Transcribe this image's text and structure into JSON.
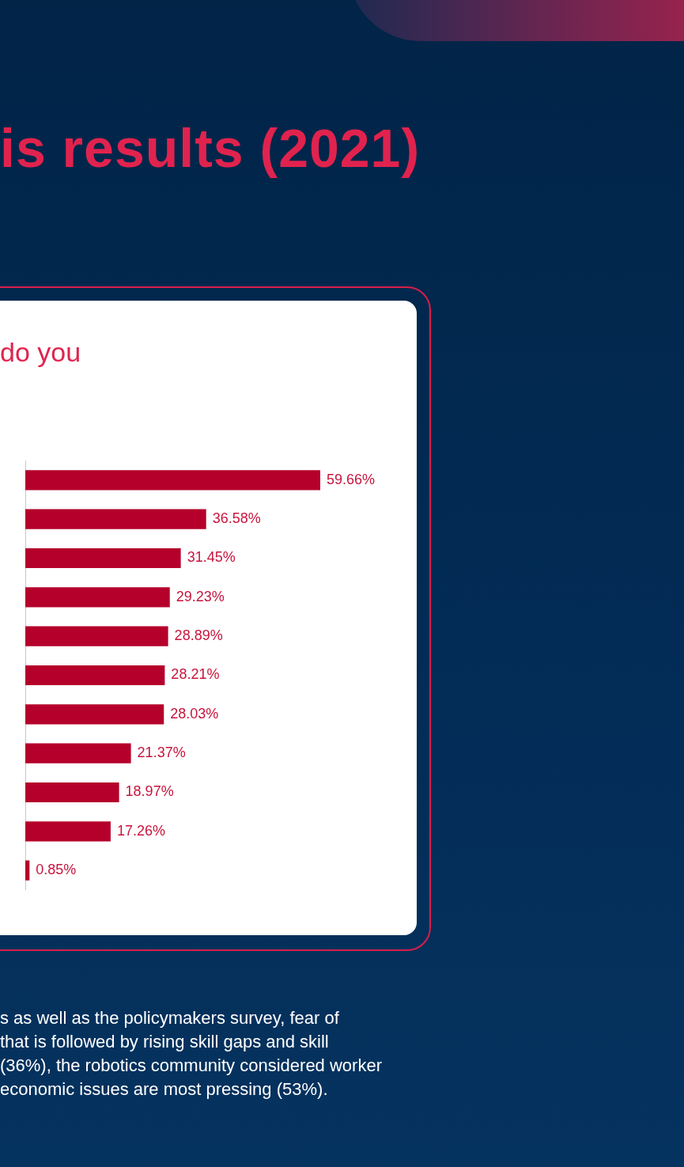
{
  "chart_data": {
    "type": "bar",
    "orientation": "horizontal",
    "title": "is results (2021)",
    "subtitle": "do you",
    "categories": [
      null,
      null,
      null,
      null,
      null,
      null,
      null,
      null,
      null,
      null,
      null
    ],
    "values": [
      59.66,
      36.58,
      31.45,
      29.23,
      28.89,
      28.21,
      28.03,
      21.37,
      18.97,
      17.26,
      0.85
    ],
    "value_labels": [
      "59.66%",
      "36.58%",
      "31.45%",
      "29.23%",
      "28.89%",
      "28.21%",
      "28.03%",
      "21.37%",
      "18.97%",
      "17.26%",
      "0.85%"
    ],
    "color": "#b5002b",
    "grid": false,
    "legend": false,
    "annotations": [
      "s as well as the policymakers survey, fear of",
      "that is followed by rising skill gaps and skill",
      "(36%), the robotics community considered worker",
      "economic issues are most pressing (53%)."
    ]
  }
}
